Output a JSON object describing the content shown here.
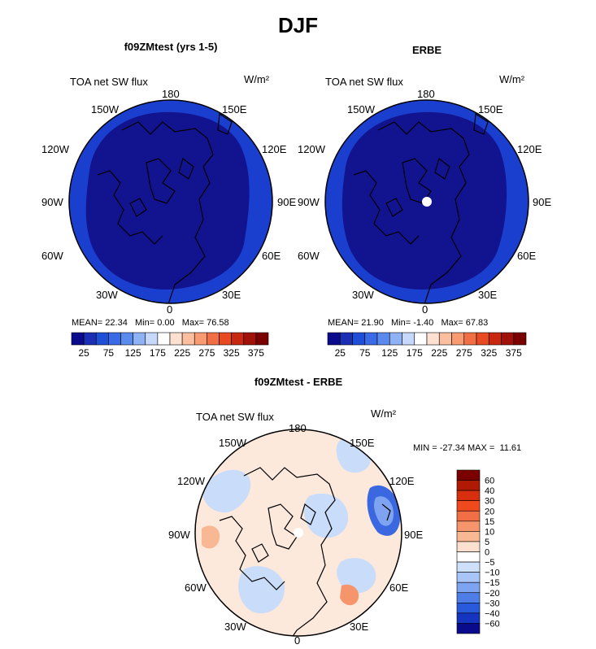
{
  "figure_title": "DJF",
  "chart_data": [
    {
      "type": "heatmap",
      "projection": "north-polar-stereographic",
      "title": "f09ZMtest (yrs 1-5)",
      "variable": "TOA net SW flux",
      "units": "W/m²",
      "stats": {
        "mean": "22.34",
        "min": "0.00",
        "max": "76.58"
      },
      "stats_text": {
        "mean_label": "MEAN=",
        "min_label": "Min=",
        "max_label": "Max="
      },
      "lon_labels": [
        "180",
        "150E",
        "120E",
        "90E",
        "60E",
        "30E",
        "0",
        "30W",
        "60W",
        "90W",
        "120W",
        "150W"
      ],
      "colorbar_ticks": [
        "25",
        "75",
        "125",
        "175",
        "225",
        "275",
        "325",
        "375"
      ],
      "colorbar_colors": [
        "#0a0a8c",
        "#1a2fb4",
        "#1f4fd6",
        "#3a6ae6",
        "#5a8aee",
        "#8fb2f4",
        "#c6d8fb",
        "#ffffff",
        "#fde0d0",
        "#fbbfa0",
        "#f89a72",
        "#f26f45",
        "#e84a23",
        "#c8280f",
        "#a11108",
        "#7a0000"
      ],
      "field_levels": [
        {
          "name": "outer ring",
          "range": "25-50",
          "color": "#1a3fcf"
        },
        {
          "name": "interior",
          "range": "0-25",
          "color": "#12148f"
        }
      ],
      "has_missing_pole": false
    },
    {
      "type": "heatmap",
      "projection": "north-polar-stereographic",
      "title": "ERBE",
      "variable": "TOA net SW flux",
      "units": "W/m²",
      "stats": {
        "mean": "21.90",
        "min": "-1.40",
        "max": "67.83"
      },
      "stats_text": {
        "mean_label": "MEAN=",
        "min_label": "Min=",
        "max_label": "Max="
      },
      "lon_labels": [
        "180",
        "150E",
        "120E",
        "90E",
        "60E",
        "30E",
        "0",
        "30W",
        "60W",
        "90W",
        "120W",
        "150W"
      ],
      "colorbar_ticks": [
        "25",
        "75",
        "125",
        "175",
        "225",
        "275",
        "325",
        "375"
      ],
      "colorbar_colors": [
        "#0a0a8c",
        "#1a2fb4",
        "#1f4fd6",
        "#3a6ae6",
        "#5a8aee",
        "#8fb2f4",
        "#c6d8fb",
        "#ffffff",
        "#fde0d0",
        "#fbbfa0",
        "#f89a72",
        "#f26f45",
        "#e84a23",
        "#c8280f",
        "#a11108",
        "#7a0000"
      ],
      "field_levels": [
        {
          "name": "outer ring",
          "range": "25-50",
          "color": "#1a3fcf"
        },
        {
          "name": "interior",
          "range": "0-25",
          "color": "#12148f"
        }
      ],
      "has_missing_pole": true
    },
    {
      "type": "heatmap",
      "projection": "north-polar-stereographic",
      "title": "f09ZMtest - ERBE",
      "variable": "TOA net SW flux",
      "units": "W/m²",
      "stats": {
        "min": "-27.34",
        "max": "11.61"
      },
      "stats_text": {
        "min_label": "MIN =",
        "max_label": "MAX ="
      },
      "lon_labels": [
        "180",
        "150E",
        "120E",
        "90E",
        "60E",
        "30E",
        "0",
        "30W",
        "60W",
        "90W",
        "120W",
        "150W"
      ],
      "colorbar_ticks": [
        "60",
        "40",
        "30",
        "20",
        "15",
        "10",
        "5",
        "0",
        "−5",
        "−10",
        "−15",
        "−20",
        "−30",
        "−40",
        "−60"
      ],
      "colorbar_colors": [
        "#7a0000",
        "#b01a05",
        "#d8300e",
        "#ef4a1e",
        "#f26f45",
        "#f6946c",
        "#f9b894",
        "#fde0d0",
        "#ffffff",
        "#cfe0fb",
        "#a9c4f6",
        "#7ea3f0",
        "#4f7de8",
        "#2a5adc",
        "#1535c0",
        "#0a0a8c"
      ],
      "has_missing_pole": true
    }
  ]
}
